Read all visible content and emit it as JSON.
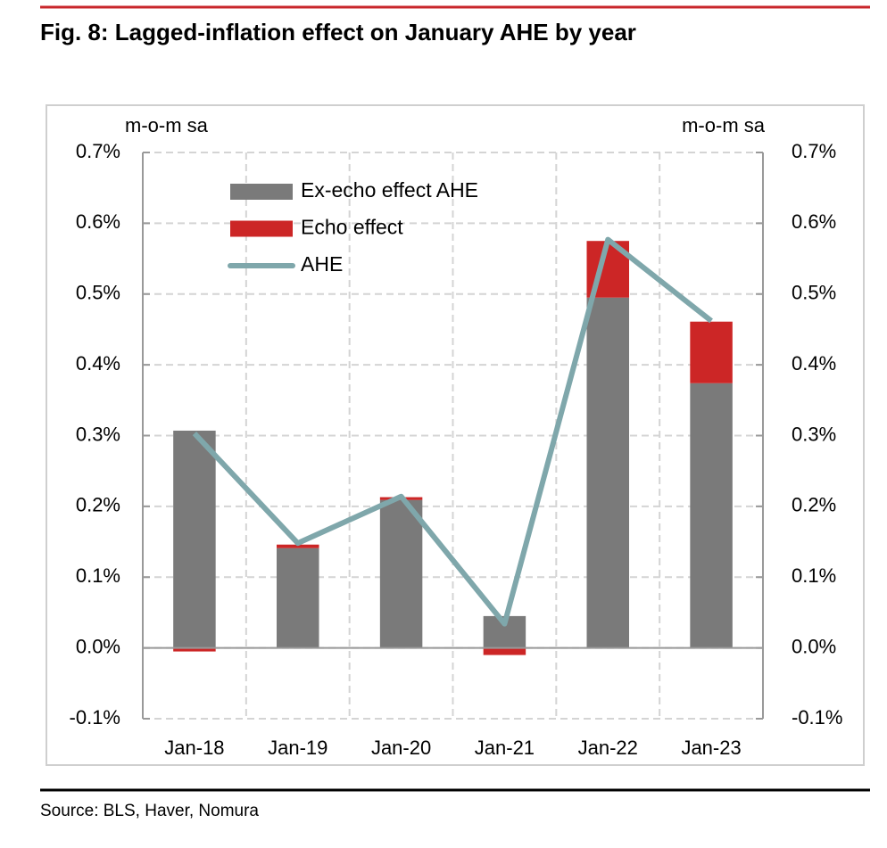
{
  "chart_data": {
    "type": "bar",
    "stacked": true,
    "title": "Fig. 8: Lagged-inflation effect on January AHE by year",
    "source": "Source: BLS, Haver, Nomura",
    "ylabel": "m-o-m sa",
    "y2label": "m-o-m sa",
    "categories": [
      "Jan-18",
      "Jan-19",
      "Jan-20",
      "Jan-21",
      "Jan-22",
      "Jan-23"
    ],
    "series": [
      {
        "name": "Ex-echo effect AHE",
        "type": "bar",
        "color": "#7a7a7a",
        "values": [
          0.307,
          0.141,
          0.209,
          0.045,
          0.495,
          0.374
        ]
      },
      {
        "name": "Echo effect",
        "type": "bar",
        "color": "#cc2626",
        "values": [
          -0.005,
          0.005,
          0.004,
          -0.01,
          0.08,
          0.087
        ]
      },
      {
        "name": "AHE",
        "type": "line",
        "color": "#7fa7ab",
        "axis": "y2",
        "values": [
          0.303,
          0.148,
          0.214,
          0.034,
          0.577,
          0.462
        ]
      }
    ],
    "ylim": [
      -0.1,
      0.7
    ],
    "yticks": [
      {
        "value": -0.1,
        "label": "-0.1%"
      },
      {
        "value": 0,
        "label": "0.0%"
      },
      {
        "value": 0.1,
        "label": "0.1%"
      },
      {
        "value": 0.2,
        "label": "0.2%"
      },
      {
        "value": 0.3,
        "label": "0.3%"
      },
      {
        "value": 0.4,
        "label": "0.4%"
      },
      {
        "value": 0.5,
        "label": "0.5%"
      },
      {
        "value": 0.6,
        "label": "0.6%"
      },
      {
        "value": 0.7,
        "label": "0.7%"
      }
    ],
    "y2lim": [
      -0.1,
      0.7
    ],
    "y2ticks": [
      {
        "value": -0.1,
        "label": "-0.1%"
      },
      {
        "value": 0,
        "label": "0.0%"
      },
      {
        "value": 0.1,
        "label": "0.1%"
      },
      {
        "value": 0.2,
        "label": "0.2%"
      },
      {
        "value": 0.3,
        "label": "0.3%"
      },
      {
        "value": 0.4,
        "label": "0.4%"
      },
      {
        "value": 0.5,
        "label": "0.5%"
      },
      {
        "value": 0.6,
        "label": "0.6%"
      },
      {
        "value": 0.7,
        "label": "0.7%"
      }
    ],
    "grid": true,
    "legend": "upper left"
  }
}
